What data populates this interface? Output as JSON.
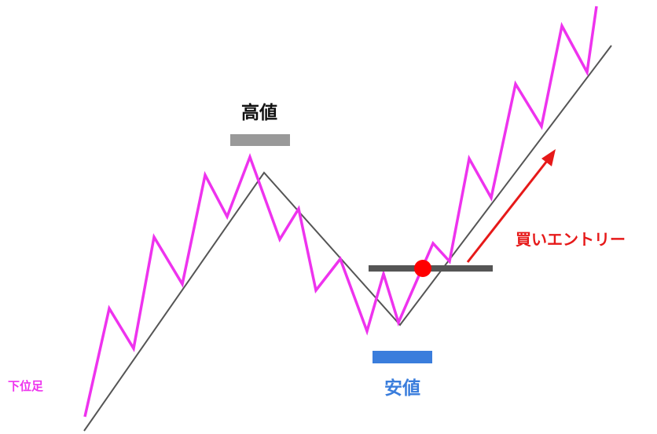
{
  "labels": {
    "high": "高値",
    "low": "安値",
    "entry": "買いエントリー",
    "lower_timeframe": "下位足"
  },
  "colors": {
    "background": "#ffffff",
    "trend_line": "#555555",
    "lower_timeframe_line": "#ee33ee",
    "high_marker": "#999999",
    "low_marker": "#3a7ddc",
    "entry_level": "#555555",
    "entry_dot": "#ff0000",
    "entry_arrow": "#e61919",
    "high_text": "#111111",
    "low_text": "#3a7ddc",
    "entry_text": "#e61919",
    "lower_timeframe_text": "#ee33ee"
  }
}
